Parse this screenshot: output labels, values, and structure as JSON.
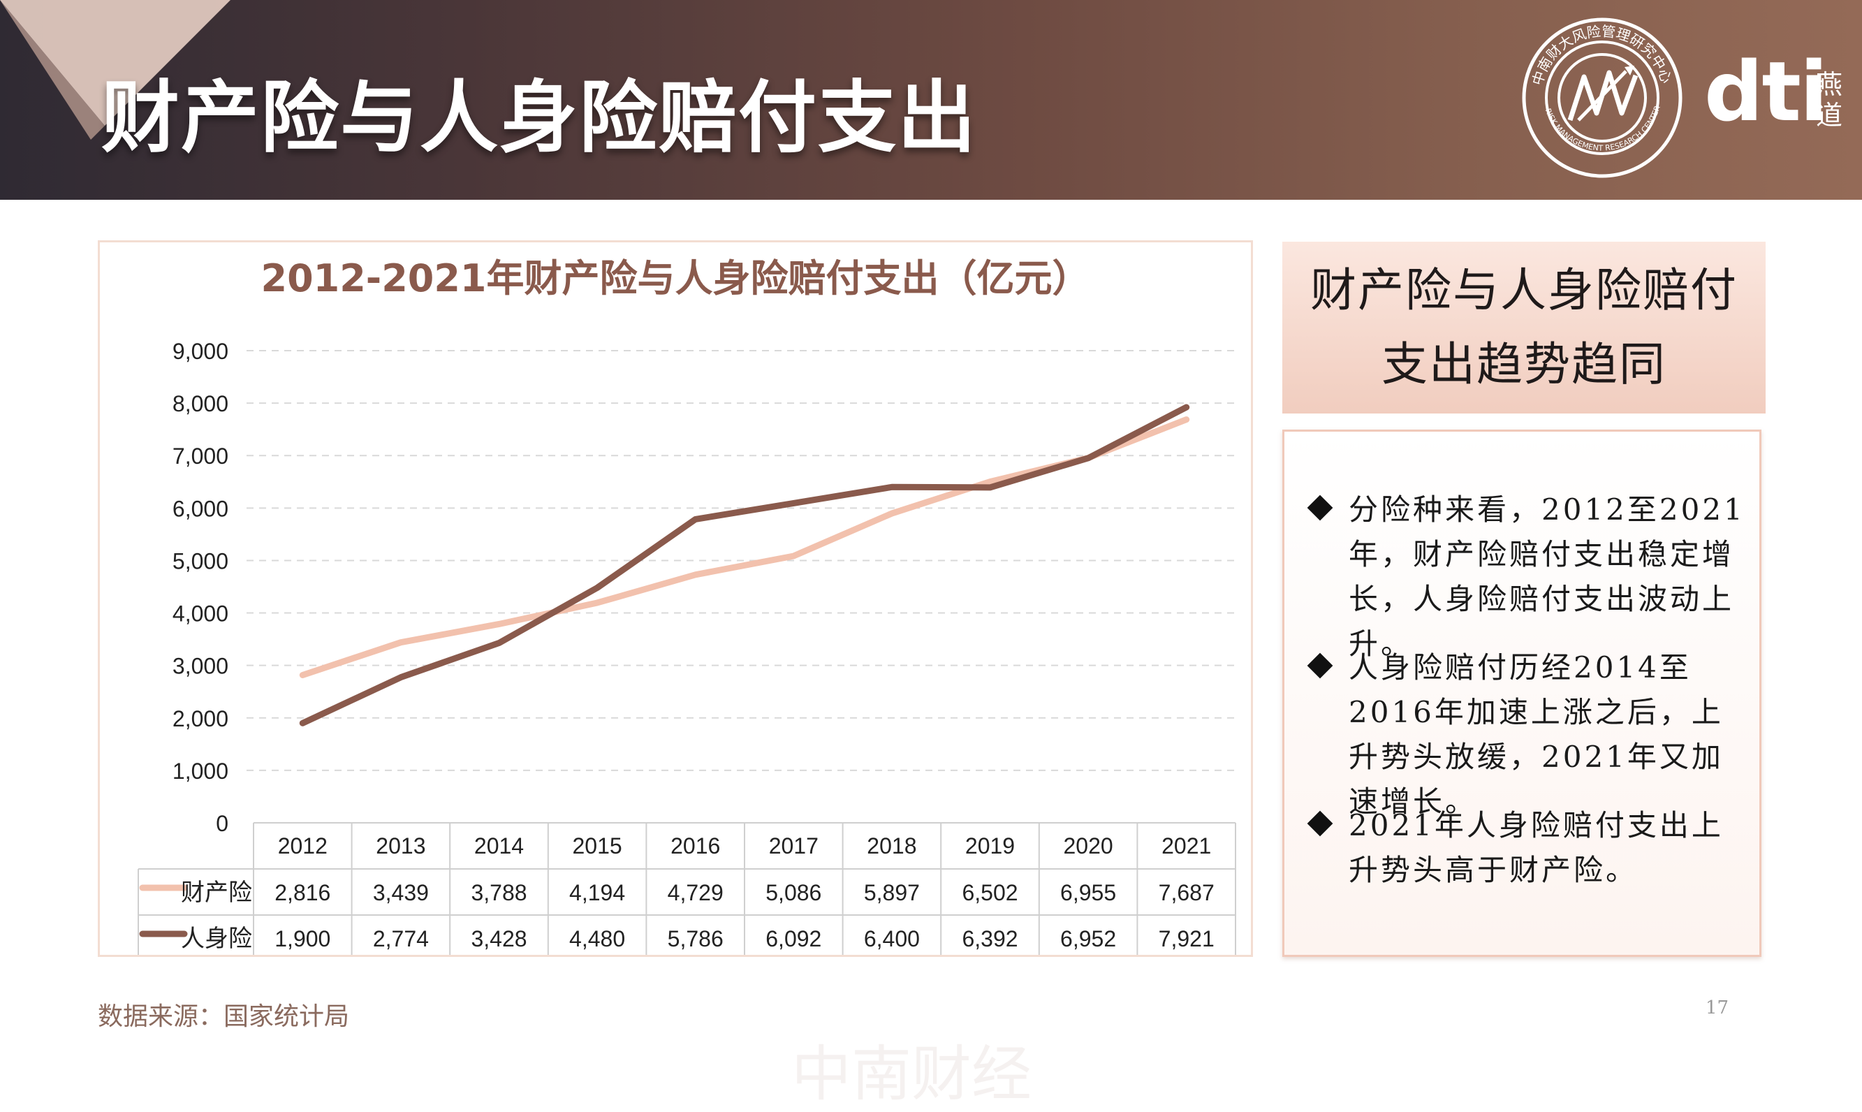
{
  "header": {
    "title": "财产险与人身险赔付支出",
    "seal_text_top": "中南财大风险管理研究中心",
    "seal_text_bottom": "RISK MANAGEMENT RESEARCH CENTER OF ZUEL",
    "brand": "dti",
    "brand_cn": "燕道"
  },
  "colors": {
    "series_property": "#f2c1ad",
    "series_life": "#8a5a4c",
    "chart_title": "#8a5a4c"
  },
  "chart_data": {
    "type": "line",
    "title": "2012-2021年财产险与人身险赔付支出（亿元）",
    "categories": [
      "2012",
      "2013",
      "2014",
      "2015",
      "2016",
      "2017",
      "2018",
      "2019",
      "2020",
      "2021"
    ],
    "series": [
      {
        "name": "财产险",
        "values": [
          2816,
          3439,
          3788,
          4194,
          4729,
          5086,
          5897,
          6502,
          6955,
          7687
        ],
        "labels": [
          "2,816",
          "3,439",
          "3,788",
          "4,194",
          "4,729",
          "5,086",
          "5,897",
          "6,502",
          "6,955",
          "7,687"
        ]
      },
      {
        "name": "人身险",
        "values": [
          1900,
          2774,
          3428,
          4480,
          5786,
          6092,
          6400,
          6392,
          6952,
          7921
        ],
        "labels": [
          "1,900",
          "2,774",
          "3,428",
          "4,480",
          "5,786",
          "6,092",
          "6,400",
          "6,392",
          "6,952",
          "7,921"
        ]
      }
    ],
    "ylim": [
      0,
      9000
    ],
    "yticks": [
      0,
      1000,
      2000,
      3000,
      4000,
      5000,
      6000,
      7000,
      8000,
      9000
    ],
    "ytick_labels": [
      "0",
      "1,000",
      "2,000",
      "3,000",
      "4,000",
      "5,000",
      "6,000",
      "7,000",
      "8,000",
      "9,000"
    ],
    "grid": true,
    "legend": "data-table",
    "xlabel": "",
    "ylabel": ""
  },
  "watermark": "中南财经",
  "summary": {
    "line1": "财产险与人身险赔付",
    "line2": "支出趋势趋同"
  },
  "notes": [
    "分险种来看，2012至2021年，财产险赔付支出稳定增长，人身险赔付支出波动上升。",
    "人身险赔付历经2014至2016年加速上涨之后，上升势头放缓，2021年又加速增长。",
    "2021年人身险赔付支出上升势头高于财产险。"
  ],
  "footer": {
    "source": "数据来源：国家统计局",
    "page": "17"
  }
}
